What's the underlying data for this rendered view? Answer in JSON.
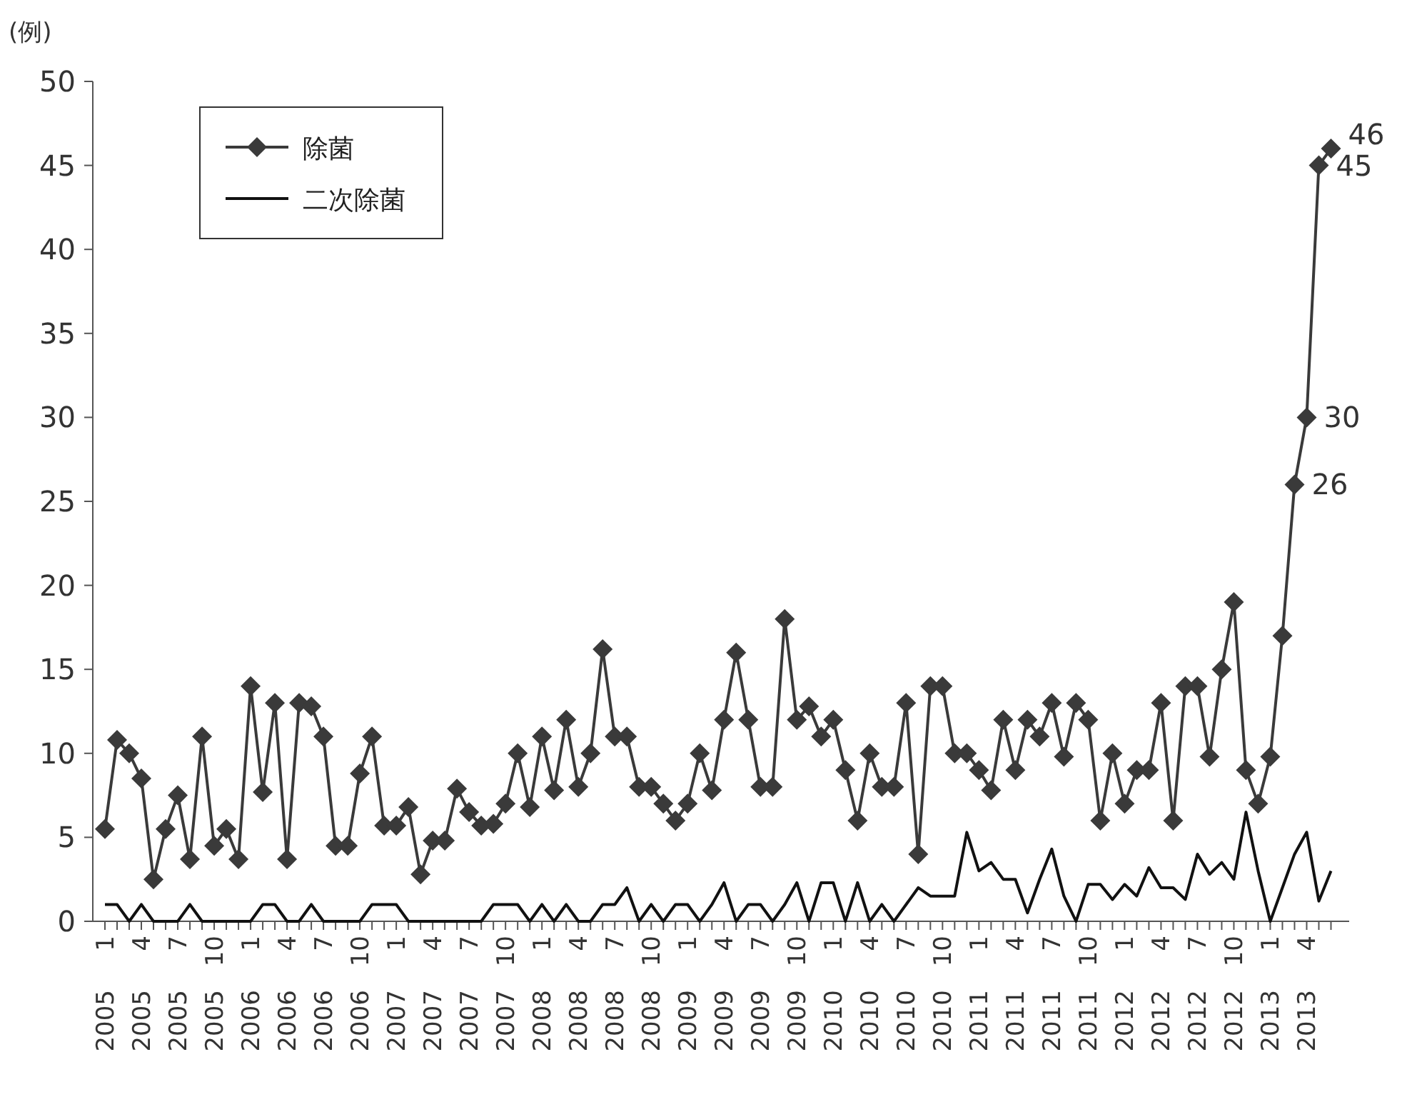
{
  "chart_data": {
    "type": "line",
    "ylabel": "(例)",
    "categories": [
      "1 2005",
      null,
      null,
      "4 2005",
      null,
      null,
      "7 2005",
      null,
      null,
      "10 2005",
      null,
      null,
      "1 2006",
      null,
      null,
      "4 2006",
      null,
      null,
      "7 2006",
      null,
      null,
      "10 2006",
      null,
      null,
      "1 2007",
      null,
      null,
      "4 2007",
      null,
      null,
      "7 2007",
      null,
      null,
      "10 2007",
      null,
      null,
      "1 2008",
      null,
      null,
      "4 2008",
      null,
      null,
      "7 2008",
      null,
      null,
      "10 2008",
      null,
      null,
      "1 2009",
      null,
      null,
      "4 2009",
      null,
      null,
      "7 2009",
      null,
      null,
      "10 2009",
      null,
      null,
      "1 2010",
      null,
      null,
      "4 2010",
      null,
      null,
      "7 2010",
      null,
      null,
      "10 2010",
      null,
      null,
      "1 2011",
      null,
      null,
      "4 2011",
      null,
      null,
      "7 2011",
      null,
      null,
      "10 2011",
      null,
      null,
      "1 2012",
      null,
      null,
      "4 2012",
      null,
      null,
      "7 2012",
      null,
      null,
      "10 2012",
      null,
      null,
      "1 2013",
      null,
      null,
      "4 2013",
      null,
      null
    ],
    "series": [
      {
        "name": "除菌",
        "color": "#3a3a3a",
        "marker": "diamond",
        "values": [
          5.5,
          10.8,
          10,
          8.5,
          2.5,
          5.5,
          7.5,
          3.7,
          11,
          4.5,
          5.5,
          3.7,
          14,
          7.7,
          13,
          3.7,
          13,
          12.8,
          11,
          4.5,
          4.5,
          8.8,
          11,
          5.7,
          5.7,
          6.8,
          2.8,
          4.8,
          4.8,
          7.9,
          6.5,
          5.7,
          5.8,
          7,
          10,
          6.8,
          11,
          7.8,
          12,
          8,
          10,
          16.2,
          11,
          11,
          8,
          8,
          7,
          6,
          7,
          10,
          7.8,
          12,
          16,
          12,
          8,
          8,
          18,
          12,
          12.8,
          11,
          12,
          9,
          6,
          10,
          8,
          8,
          13,
          4,
          14,
          14,
          10,
          10,
          9,
          7.8,
          12,
          9,
          12,
          11,
          13,
          9.8,
          13,
          12,
          6,
          10,
          7,
          9,
          9,
          13,
          6,
          14,
          14,
          9.8,
          15,
          19,
          9,
          7,
          9.8,
          17,
          26,
          30,
          45,
          46
        ],
        "value_labels": [
          null,
          null,
          null,
          null,
          null,
          null,
          null,
          null,
          null,
          null,
          null,
          null,
          null,
          null,
          null,
          null,
          null,
          null,
          null,
          null,
          null,
          null,
          null,
          null,
          null,
          null,
          null,
          null,
          null,
          null,
          null,
          null,
          null,
          null,
          null,
          null,
          null,
          null,
          null,
          null,
          null,
          null,
          null,
          null,
          null,
          null,
          null,
          null,
          null,
          null,
          null,
          null,
          null,
          null,
          null,
          null,
          null,
          null,
          null,
          null,
          null,
          null,
          null,
          null,
          null,
          null,
          null,
          null,
          null,
          null,
          null,
          null,
          null,
          null,
          null,
          null,
          null,
          null,
          null,
          null,
          null,
          null,
          null,
          null,
          null,
          null,
          null,
          null,
          null,
          null,
          null,
          null,
          null,
          null,
          null,
          null,
          null,
          null,
          "26",
          "30",
          "45",
          "46"
        ]
      },
      {
        "name": "二次除菌",
        "color": "#111111",
        "marker": "none",
        "values": [
          1,
          1,
          0,
          1,
          0,
          0,
          0,
          1,
          0,
          0,
          0,
          0,
          0,
          1,
          1,
          0,
          0,
          1,
          0,
          0,
          0,
          0,
          1,
          1,
          1,
          0,
          0,
          0,
          0,
          0,
          0,
          0,
          1,
          1,
          1,
          0,
          1,
          0,
          1,
          0,
          0,
          1,
          1,
          2,
          0,
          1,
          0,
          1,
          1,
          0,
          1,
          2.3,
          0,
          1,
          1,
          0,
          1,
          2.3,
          0,
          2.3,
          2.3,
          0,
          2.3,
          0,
          1,
          0,
          1,
          2,
          1.5,
          1.5,
          1.5,
          5.3,
          3,
          3.5,
          2.5,
          2.5,
          0.5,
          2.5,
          4.3,
          1.5,
          0,
          2.2,
          2.2,
          1.3,
          2.2,
          1.5,
          3.2,
          2,
          2,
          1.3,
          4,
          2.8,
          3.5,
          2.5,
          6.5,
          3,
          0,
          2,
          4,
          5.3,
          1.2,
          3
        ]
      }
    ],
    "ylim": [
      0,
      50
    ],
    "yticks": [
      0,
      5,
      10,
      15,
      20,
      25,
      30,
      35,
      40,
      45,
      50
    ],
    "grid": false,
    "legend": "top left"
  }
}
